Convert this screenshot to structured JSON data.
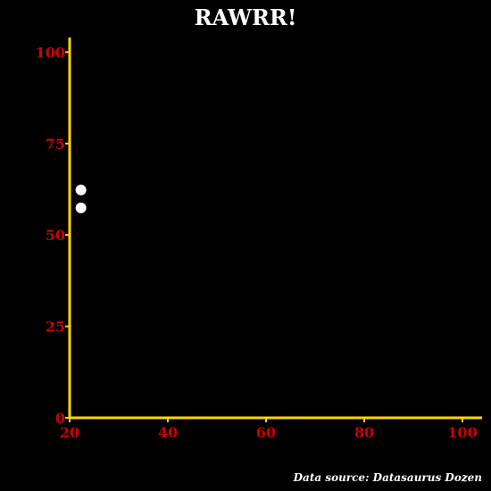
{
  "chart_data": {
    "type": "scatter",
    "title": "RAWRR!",
    "caption": "Data source: Datasaurus Dozen",
    "xlabel": "",
    "ylabel": "",
    "xlim": [
      20,
      104
    ],
    "ylim": [
      0,
      104
    ],
    "x_ticks": [
      20,
      40,
      60,
      80,
      100
    ],
    "y_ticks": [
      0,
      25,
      50,
      75,
      100
    ],
    "x_tick_labels": [
      "20",
      "40",
      "60",
      "80",
      "100"
    ],
    "y_tick_labels": [
      "0",
      "25",
      "50",
      "75",
      "100"
    ],
    "grid": false,
    "points": [
      {
        "x": 22.3,
        "y": 62.3
      },
      {
        "x": 22.3,
        "y": 57.4
      }
    ],
    "colors": {
      "background": "#000000",
      "axis": "#ffd700",
      "tick_label": "#cc0000",
      "point": "#ffffff",
      "title": "#ffffff"
    }
  }
}
